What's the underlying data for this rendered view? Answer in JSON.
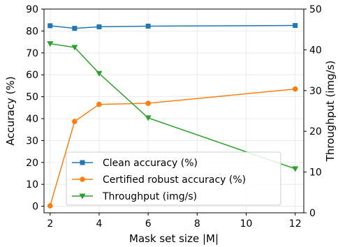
{
  "chart_data": {
    "type": "line",
    "xlabel": "Mask set size |M|",
    "ylabel_left": "Accuracy (%)",
    "ylabel_right": "Throughput (img/s)",
    "x": [
      2,
      3,
      4,
      6,
      12
    ],
    "xlim": [
      1.75,
      12.35
    ],
    "xticks": [
      2,
      4,
      6,
      8,
      10,
      12
    ],
    "ylim_left": [
      -3,
      90
    ],
    "yticks_left": [
      0,
      10,
      20,
      30,
      40,
      50,
      60,
      70,
      80,
      90
    ],
    "ylim_right": [
      0,
      50
    ],
    "yticks_right": [
      0,
      10,
      20,
      30,
      40,
      50
    ],
    "grid": true,
    "legend_position": "lower-left",
    "series": [
      {
        "name": "Clean accuracy (%)",
        "axis": "left",
        "color": "#1f77b4",
        "marker": "square",
        "values": [
          82.4,
          81.2,
          81.9,
          82.2,
          82.5
        ]
      },
      {
        "name": "Certified robust accuracy (%)",
        "axis": "left",
        "color": "#ff7f0e",
        "marker": "circle",
        "values": [
          0.2,
          38.7,
          46.5,
          47.0,
          53.5
        ]
      },
      {
        "name": "Throughput (img/s)",
        "axis": "right",
        "color": "#2ca02c",
        "marker": "triangle-down",
        "values": [
          41.5,
          40.6,
          34.2,
          23.3,
          10.8
        ]
      }
    ]
  }
}
